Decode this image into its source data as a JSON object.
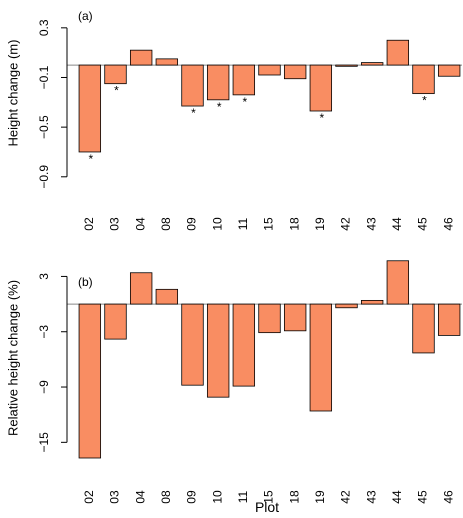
{
  "colors": {
    "bar_fill": "#f98d62",
    "bar_stroke": "#000000",
    "zero_line": "#888888"
  },
  "chart_data": [
    {
      "type": "bar",
      "panel_label": "(a)",
      "ylabel": "Height change (m)",
      "categories": [
        "02",
        "03",
        "04",
        "08",
        "09",
        "10",
        "11",
        "15",
        "18",
        "19",
        "42",
        "43",
        "44",
        "45",
        "46"
      ],
      "values": [
        -0.7,
        -0.15,
        0.12,
        0.05,
        -0.33,
        -0.28,
        -0.24,
        -0.08,
        -0.11,
        -0.37,
        -0.01,
        0.02,
        0.2,
        -0.23,
        -0.09
      ],
      "significant": [
        true,
        true,
        false,
        false,
        true,
        true,
        true,
        false,
        false,
        true,
        false,
        false,
        false,
        true,
        false
      ],
      "significance_mark": "*",
      "ylim": [
        -0.95,
        0.5
      ],
      "yticks": [
        0.3,
        -0.1,
        -0.5,
        -0.9
      ],
      "ytick_labels": [
        "0.3",
        "−0.1",
        "−0.5",
        "−0.9"
      ],
      "zero_line": true,
      "grid": false,
      "legend": "none"
    },
    {
      "type": "bar",
      "panel_label": "(b)",
      "ylabel": "Relative height change (%)",
      "xlabel": "Plot",
      "categories": [
        "02",
        "03",
        "04",
        "08",
        "09",
        "10",
        "11",
        "15",
        "18",
        "19",
        "42",
        "43",
        "44",
        "45",
        "46"
      ],
      "values": [
        -16.7,
        -3.8,
        3.4,
        1.6,
        -8.8,
        -10.1,
        -8.9,
        -3.1,
        -2.9,
        -11.6,
        -0.4,
        0.4,
        4.7,
        -5.3,
        -3.4
      ],
      "ylim": [
        -16.7,
        5.0
      ],
      "yticks": [
        3,
        -3,
        -9,
        -15
      ],
      "ytick_labels": [
        "3",
        "−3",
        "−9",
        "−15"
      ],
      "zero_line": true,
      "grid": false,
      "legend": "none"
    }
  ]
}
